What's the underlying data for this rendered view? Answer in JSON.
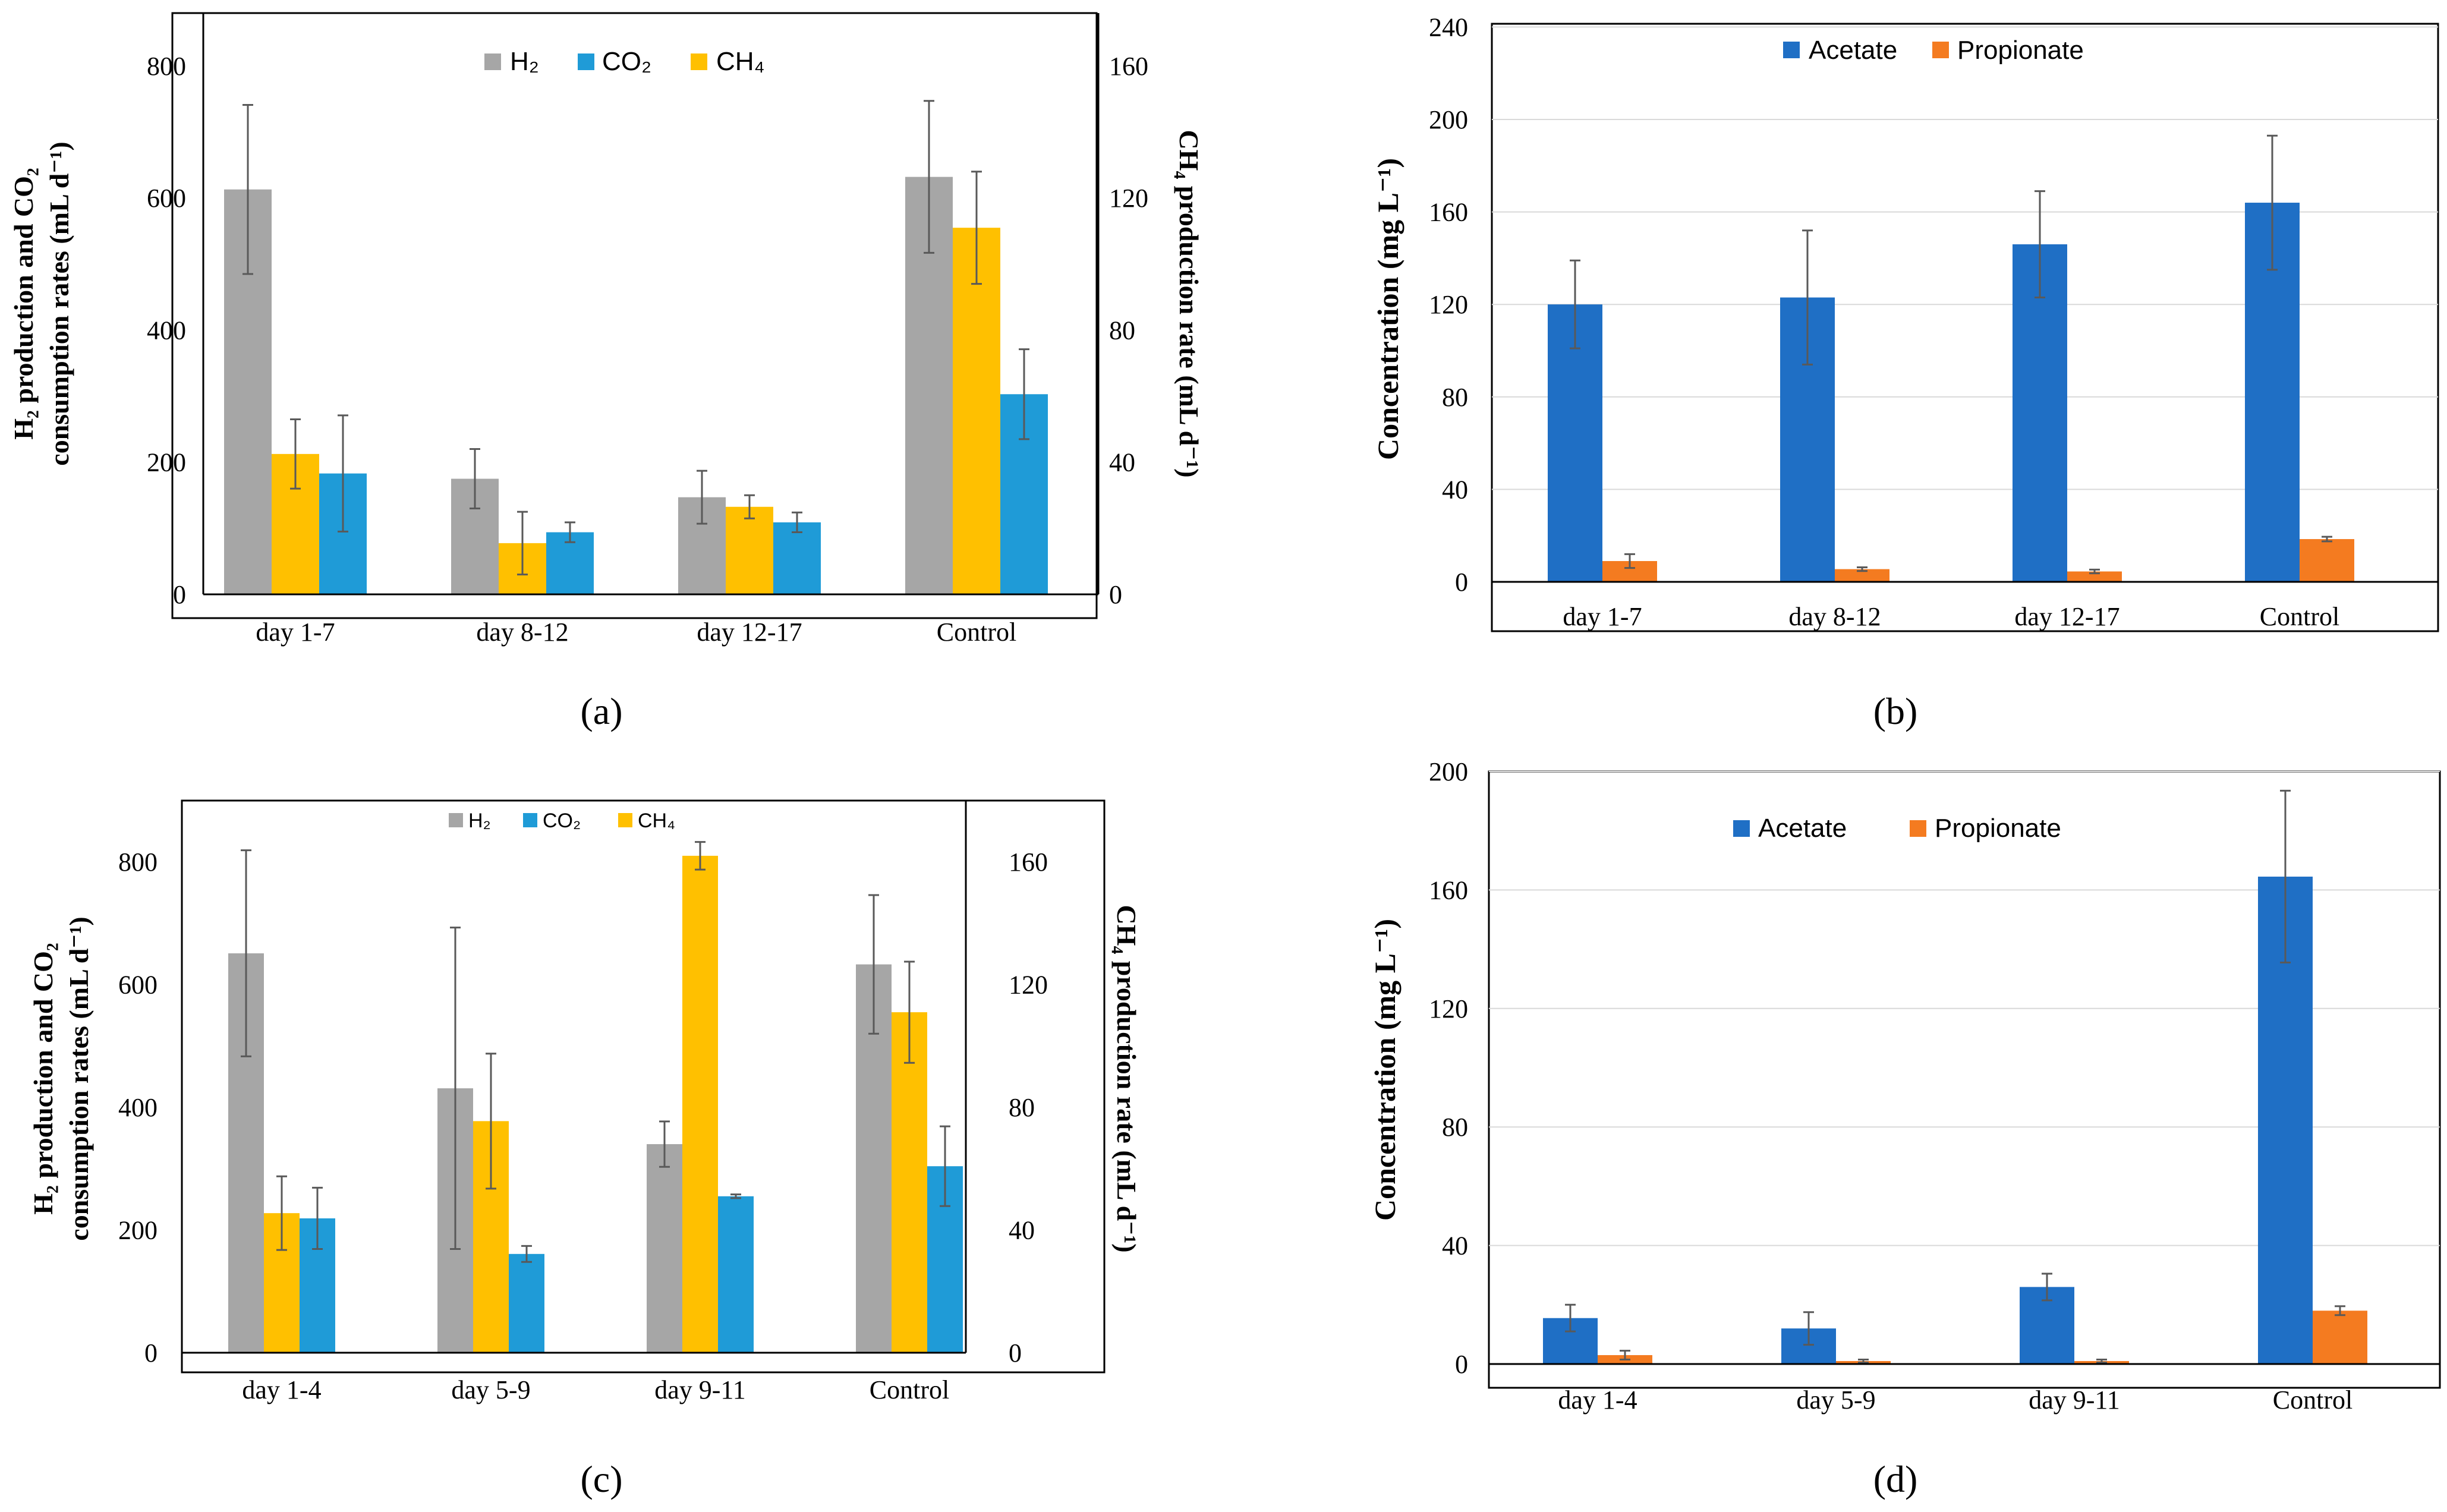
{
  "colors": {
    "h2": "#a6a6a6",
    "co2": "#1f9bd7",
    "ch4": "#ffc000",
    "acetate": "#1f6fc5",
    "propionate": "#f47b20",
    "error": "#595959",
    "axis": "#000000"
  },
  "chart_data": [
    {
      "panel": "(a)",
      "type": "bar",
      "dual_axis": true,
      "categories": [
        "day 1-7",
        "day 8-12",
        "day 12-17",
        "Control"
      ],
      "legend": [
        "H₂",
        "CO₂",
        "CH₄"
      ],
      "legend_position": "top-center",
      "ylabel_line1": "H₂ production and CO₂",
      "ylabel_line2": "consumption rates (mL d⁻¹)",
      "y2label": "CH₄ production rate (mL d⁻¹)",
      "ylim": [
        0,
        880
      ],
      "y2lim": [
        0,
        176
      ],
      "yticks": [
        "0",
        "200",
        "400",
        "600",
        "800"
      ],
      "y2ticks": [
        "0",
        "40",
        "80",
        "120",
        "160"
      ],
      "series": [
        {
          "name": "H2",
          "axis": "left",
          "values": [
            613,
            175,
            147,
            632
          ],
          "errors": [
            128,
            45,
            40,
            115
          ]
        },
        {
          "name": "CH4",
          "axis": "right",
          "values": [
            42.5,
            15.5,
            26.5,
            111
          ],
          "errors": [
            10.5,
            9.5,
            3.5,
            17
          ]
        },
        {
          "name": "CO2",
          "axis": "left",
          "values": [
            183,
            94,
            109,
            303
          ],
          "errors": [
            88,
            15,
            15,
            68
          ]
        }
      ]
    },
    {
      "panel": "(b)",
      "type": "bar",
      "categories": [
        "day 1-7",
        "day 8-12",
        "day 12-17",
        "Control"
      ],
      "legend": [
        "Acetate",
        "Propionate"
      ],
      "legend_position": "top-center",
      "ylabel": "Concentration (mg L⁻¹)",
      "ylim": [
        0,
        240
      ],
      "yticks": [
        "0",
        "40",
        "80",
        "120",
        "160",
        "200",
        "240"
      ],
      "series": [
        {
          "name": "Acetate",
          "values": [
            120,
            123,
            146,
            164
          ],
          "errors": [
            19,
            29,
            23,
            29
          ]
        },
        {
          "name": "Propionate",
          "values": [
            9,
            5.5,
            4.5,
            18.5
          ],
          "errors": [
            3,
            0.8,
            0.8,
            1
          ]
        }
      ]
    },
    {
      "panel": "(c)",
      "type": "bar",
      "dual_axis": true,
      "categories": [
        "day 1-4",
        "day 5-9",
        "day 9-11",
        "Control"
      ],
      "legend": [
        "H₂",
        "CO₂",
        "CH₄"
      ],
      "legend_position": "top-center",
      "ylabel_line1": "H₂ production and CO₂",
      "ylabel_line2": "consumption rates (mL d⁻¹)",
      "y2label": "CH₄ production rate (mL d⁻¹)",
      "ylim": [
        0,
        900
      ],
      "y2lim": [
        0,
        180
      ],
      "yticks": [
        "0",
        "200",
        "400",
        "600",
        "800"
      ],
      "y2ticks": [
        "0",
        "40",
        "80",
        "120",
        "160"
      ],
      "series": [
        {
          "name": "H2",
          "axis": "left",
          "values": [
            651,
            431,
            340,
            633
          ],
          "errors": [
            168,
            262,
            37,
            113
          ]
        },
        {
          "name": "CH4",
          "axis": "right",
          "values": [
            45.5,
            75.5,
            162,
            111
          ],
          "errors": [
            12,
            22,
            4.5,
            16.5
          ]
        },
        {
          "name": "CO2",
          "axis": "left",
          "values": [
            219,
            161,
            255,
            304
          ],
          "errors": [
            50,
            13,
            3,
            65
          ]
        }
      ]
    },
    {
      "panel": "(d)",
      "type": "bar",
      "categories": [
        "day 1-4",
        "day 5-9",
        "day 9-11",
        "Control"
      ],
      "legend": [
        "Acetate",
        "Propionate"
      ],
      "legend_position": "top-center",
      "ylabel": "Concentration (mg L⁻¹)",
      "ylim": [
        0,
        200
      ],
      "yticks": [
        "0",
        "40",
        "80",
        "120",
        "160",
        "200"
      ],
      "series": [
        {
          "name": "Acetate",
          "values": [
            15.5,
            12,
            26,
            164.5
          ],
          "errors": [
            4.5,
            5.5,
            4.5,
            29
          ]
        },
        {
          "name": "Propionate",
          "values": [
            3,
            1,
            1,
            18
          ],
          "errors": [
            1.5,
            0.5,
            0.5,
            1.5
          ]
        }
      ]
    }
  ]
}
